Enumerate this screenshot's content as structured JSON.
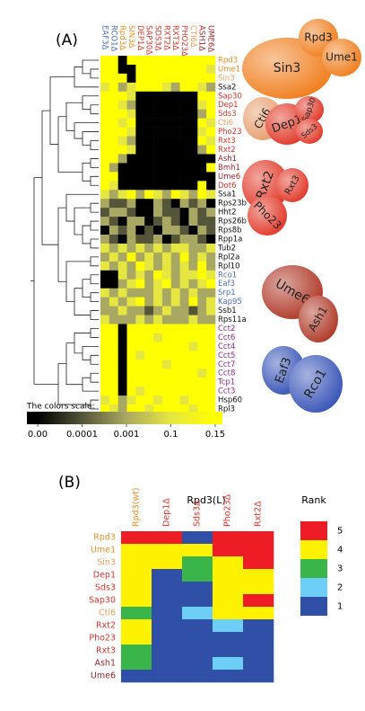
{
  "panel_a": {
    "label": "(A)",
    "columns": [
      "EAF3Δ",
      "RCO1Δ",
      "Rpd3Δ",
      "SIN3Δ",
      "DEP1Δ",
      "SAP30Δ",
      "SDS3Δ",
      "RXT2Δ",
      "RXT3Δ",
      "PHO23Δ",
      "CTI6Δ",
      "ASH1Δ",
      "UME6Δ"
    ],
    "column_colors": [
      "#4a6db3",
      "#4a6db3",
      "#e8902a",
      "#e8902a",
      "#d9342b",
      "#d9342b",
      "#d9342b",
      "#d9342b",
      "#d9342b",
      "#d9342b",
      "#e8a060",
      "#a3282b",
      "#a3282b"
    ],
    "rows": [
      "Rpd3",
      "Ume1",
      "Sin3",
      "Ssa2",
      "Sap30",
      "Dep1",
      "Sds3",
      "Cti6",
      "Pho23",
      "Rxt3",
      "Rxt2",
      "Ash1",
      "Bmh1",
      "Ume6",
      "Dot6",
      "Ssa1",
      "Rps23b",
      "Hht2",
      "Rps26b",
      "Rps8b",
      "Rpp1a",
      "Tub2",
      "Rpl2a",
      "Rpl10",
      "Rco1",
      "Eaf3",
      "Srp1",
      "Kap95",
      "Ssb1",
      "Rps11a",
      "Cct2",
      "Cct6",
      "Cct4",
      "Cct5",
      "Cct7",
      "Cct8",
      "Tcp1",
      "Cct3",
      "Hsp60",
      "Rpl3"
    ],
    "row_colors": [
      "#e8902a",
      "#e8902a",
      "#e8a060",
      "#111111",
      "#d9342b",
      "#d9342b",
      "#d9342b",
      "#e8a060",
      "#d9342b",
      "#d9342b",
      "#d9342b",
      "#a3282b",
      "#a3282b",
      "#a3282b",
      "#d9342b",
      "#111111",
      "#111111",
      "#111111",
      "#111111",
      "#111111",
      "#111111",
      "#111111",
      "#111111",
      "#111111",
      "#4a6db3",
      "#4a6db3",
      "#4a6db3",
      "#4a6db3",
      "#111111",
      "#111111",
      "#8b2c8f",
      "#8b2c8f",
      "#8b2c8f",
      "#8b2c8f",
      "#8b2c8f",
      "#8b2c8f",
      "#8b2c8f",
      "#8b2c8f",
      "#111111",
      "#111111"
    ],
    "matrix": [
      [
        0.15,
        0.15,
        0,
        0.15,
        0.15,
        0.15,
        0.15,
        0.15,
        0.15,
        0.15,
        0.15,
        0.15,
        0.15
      ],
      [
        0.15,
        0.15,
        0,
        0,
        0.15,
        0.15,
        0.15,
        0.15,
        0.15,
        0.15,
        0.15,
        0.15,
        0.1
      ],
      [
        0.15,
        0.15,
        0.15,
        0,
        0.15,
        0.15,
        0.15,
        0.15,
        0.15,
        0.15,
        0.15,
        0.15,
        0.15
      ],
      [
        0.1,
        0.15,
        0.001,
        0.1,
        0.15,
        0.15,
        0.15,
        0.1,
        0.001,
        0.15,
        0.15,
        0.1,
        0.001
      ],
      [
        0.15,
        0.15,
        0.15,
        0.1,
        0,
        0,
        0,
        0,
        0,
        0,
        0,
        0.15,
        0.15
      ],
      [
        0.15,
        0.15,
        0.1,
        0.001,
        0,
        0,
        0,
        0,
        0,
        0,
        0,
        0.1,
        0.15
      ],
      [
        0.15,
        0.15,
        0.15,
        0.1,
        0,
        0,
        0,
        0,
        0,
        0,
        0,
        0.001,
        0.15
      ],
      [
        0.15,
        0.15,
        0.1,
        0.15,
        0,
        0,
        0,
        0,
        0,
        0,
        0,
        0.15,
        0.1
      ],
      [
        0.15,
        0.15,
        0.15,
        0.1,
        0,
        0,
        0,
        0,
        0,
        0,
        0,
        0.1,
        0.15
      ],
      [
        0.15,
        0.15,
        0.1,
        0.001,
        0,
        0,
        0,
        0,
        0,
        0,
        0,
        0.15,
        0.1
      ],
      [
        0.15,
        0.15,
        0.15,
        0.1,
        0,
        0,
        0,
        0,
        0,
        0,
        0,
        0.001,
        0.15
      ],
      [
        0.15,
        0.15,
        0.001,
        0,
        0,
        0,
        0,
        0,
        0,
        0,
        0,
        0,
        0
      ],
      [
        0.15,
        0.001,
        0,
        0,
        0,
        0,
        0,
        0,
        0,
        0,
        0,
        0,
        0.15
      ],
      [
        0.15,
        0.15,
        0,
        0,
        0,
        0,
        0,
        0,
        0,
        0,
        0,
        0,
        0
      ],
      [
        0.15,
        0.1,
        0,
        0,
        0,
        0,
        0,
        0,
        0,
        0,
        0,
        0.15,
        0
      ],
      [
        0.1,
        0.001,
        0.1,
        0.15,
        0.001,
        0.15,
        0.1,
        0.001,
        0.15,
        0.1,
        0.001,
        0.15,
        0.1
      ],
      [
        0.001,
        0.0001,
        0.0001,
        0.001,
        0,
        0,
        0.001,
        0.0001,
        0,
        0.001,
        0.0001,
        0.001,
        0
      ],
      [
        0.0001,
        0.001,
        0.001,
        0.0001,
        0,
        0,
        0.001,
        0.0001,
        0.0001,
        0,
        0.001,
        0.0001,
        0.001
      ],
      [
        0.001,
        0.0001,
        0,
        0.001,
        0.001,
        0,
        0.0001,
        0.001,
        0.0001,
        0,
        0.001,
        0.0001,
        0.0001
      ],
      [
        0,
        0.001,
        0.0001,
        0.001,
        0,
        0.0001,
        0,
        0.001,
        0.001,
        0.0001,
        0,
        0.001,
        0.0001
      ],
      [
        0.001,
        0.0001,
        0,
        0.001,
        0.0001,
        0.0001,
        0.001,
        0,
        0.0001,
        0.001,
        0.001,
        0.0001,
        0
      ],
      [
        0.1,
        0.001,
        0.1,
        0.001,
        0.1,
        0.001,
        0.1,
        0.001,
        0.1,
        0.1,
        0.001,
        0.001,
        0.1
      ],
      [
        0.001,
        0.1,
        0.001,
        0.15,
        0.001,
        0.1,
        0.001,
        0.1,
        0.001,
        0.15,
        0.001,
        0.1,
        0.001
      ],
      [
        0.1,
        0.001,
        0.1,
        0.001,
        0.15,
        0.1,
        0.001,
        0.1,
        0.001,
        0.1,
        0.001,
        0.15,
        0.001
      ],
      [
        0,
        0,
        0.1,
        0.001,
        0.1,
        0.001,
        0.15,
        0.1,
        0.001,
        0.1,
        0.1,
        0.15,
        0.1
      ],
      [
        0,
        0,
        0.001,
        0.1,
        0.15,
        0.001,
        0.1,
        0.15,
        0.001,
        0.1,
        0.001,
        0.1,
        0.15
      ],
      [
        0.1,
        0.001,
        0.1,
        0.001,
        0.001,
        0.001,
        0.1,
        0.001,
        0.1,
        0.001,
        0.1,
        0.001,
        0.001
      ],
      [
        0.001,
        0.1,
        0.001,
        0.1,
        0.15,
        0.001,
        0.1,
        0.001,
        0.1,
        0.001,
        0.15,
        0.001,
        0.1
      ],
      [
        0.001,
        0.001,
        0.1,
        0.001,
        0.001,
        0.0001,
        0.001,
        0.1,
        0.001,
        0.001,
        0.0001,
        0.001,
        0.1
      ],
      [
        0.1,
        0.001,
        0.001,
        0.001,
        0.1,
        0.001,
        0.1,
        0.001,
        0.001,
        0.001,
        0.1,
        0.001,
        0.001
      ],
      [
        0.15,
        0.15,
        0,
        0.15,
        0.15,
        0.15,
        0.15,
        0.15,
        0.15,
        0.15,
        0.15,
        0.15,
        0.15
      ],
      [
        0.15,
        0.15,
        0,
        0.15,
        0.15,
        0.15,
        0.1,
        0.15,
        0.15,
        0.15,
        0.15,
        0.15,
        0.15
      ],
      [
        0.15,
        0.15,
        0,
        0.15,
        0.15,
        0.15,
        0.15,
        0.15,
        0.15,
        0.15,
        0.1,
        0.15,
        0.15
      ],
      [
        0.15,
        0.15,
        0,
        0.15,
        0.1,
        0.15,
        0.15,
        0.15,
        0.15,
        0.15,
        0.15,
        0.15,
        0.15
      ],
      [
        0.15,
        0.15,
        0,
        0.15,
        0.15,
        0.15,
        0.15,
        0.1,
        0.15,
        0.15,
        0.15,
        0.15,
        0.15
      ],
      [
        0.15,
        0.15,
        0,
        0.15,
        0.15,
        0.15,
        0.15,
        0.15,
        0.15,
        0.15,
        0.15,
        0.1,
        0.15
      ],
      [
        0.15,
        0.15,
        0,
        0.15,
        0.15,
        0.15,
        0.15,
        0.15,
        0.15,
        0.15,
        0.15,
        0.15,
        0.15
      ],
      [
        0.15,
        0.15,
        0,
        0.15,
        0.1,
        0.15,
        0.15,
        0.15,
        0.15,
        0.15,
        0.15,
        0.15,
        0.15
      ],
      [
        0.1,
        0.15,
        0.001,
        0.1,
        0.15,
        0.15,
        0.1,
        0.15,
        0.15,
        0.1,
        0.15,
        0.15,
        0.15
      ],
      [
        0.15,
        0.1,
        0.001,
        0.15,
        0.15,
        0.1,
        0.15,
        0.15,
        0.15,
        0.15,
        0.1,
        0.15,
        0.15
      ]
    ],
    "scale_title": "The colors scale:",
    "scale_ticks": [
      {
        "value": 0,
        "label": "0.00"
      },
      0.0001,
      0.001,
      0.1,
      0.15
    ],
    "scale_colors": [
      "#000000",
      "#55553a",
      "#a9a862",
      "#e6e640",
      "#ffff00"
    ],
    "complexes": [
      "Sin3",
      "Rpd3",
      "Ume1",
      "Cti6",
      "Dep1",
      "Sap30",
      "Sds3",
      "Rxt2",
      "Rxt3",
      "Pho23",
      "Ume6",
      "Ash1",
      "Eaf3",
      "Rco1"
    ]
  },
  "panel_b": {
    "label": "(B)",
    "title": "Rpd3(L)",
    "columns": [
      "Rpd3(wt)",
      "Dep1Δ",
      "Sds3Δ",
      "Pho23Δ",
      "Rxt2Δ"
    ],
    "column_colors": [
      "#e8902a",
      "#d9342b",
      "#d9342b",
      "#d9342b",
      "#d9342b"
    ],
    "rows": [
      "Rpd3",
      "Ume1",
      "Sin3",
      "Dep1",
      "Sds3",
      "Sap30",
      "Cti6",
      "Rxt2",
      "Pho23",
      "Rxt3",
      "Ash1",
      "Ume6"
    ],
    "row_colors": [
      "#e8902a",
      "#e8902a",
      "#e8a060",
      "#d9342b",
      "#d9342b",
      "#d9342b",
      "#e8a060",
      "#d9342b",
      "#d9342b",
      "#d9342b",
      "#a3282b",
      "#a3282b"
    ],
    "matrix": [
      [
        5,
        5,
        1,
        5,
        5
      ],
      [
        4,
        4,
        4,
        5,
        5
      ],
      [
        4,
        4,
        3,
        4,
        5
      ],
      [
        4,
        1,
        3,
        4,
        4
      ],
      [
        4,
        1,
        1,
        4,
        4
      ],
      [
        4,
        1,
        1,
        4,
        5
      ],
      [
        3,
        1,
        2,
        4,
        4
      ],
      [
        4,
        1,
        1,
        2,
        1
      ],
      [
        4,
        1,
        1,
        1,
        1
      ],
      [
        3,
        1,
        1,
        1,
        1
      ],
      [
        3,
        1,
        1,
        2,
        1
      ],
      [
        1,
        1,
        1,
        1,
        1
      ]
    ],
    "legend_title": "Rank",
    "ranks": [
      5,
      4,
      3,
      2,
      1
    ],
    "rank_colors": [
      "#ee1c24",
      "#fff200",
      "#3ab54a",
      "#6dcff6",
      "#3050a8"
    ]
  }
}
